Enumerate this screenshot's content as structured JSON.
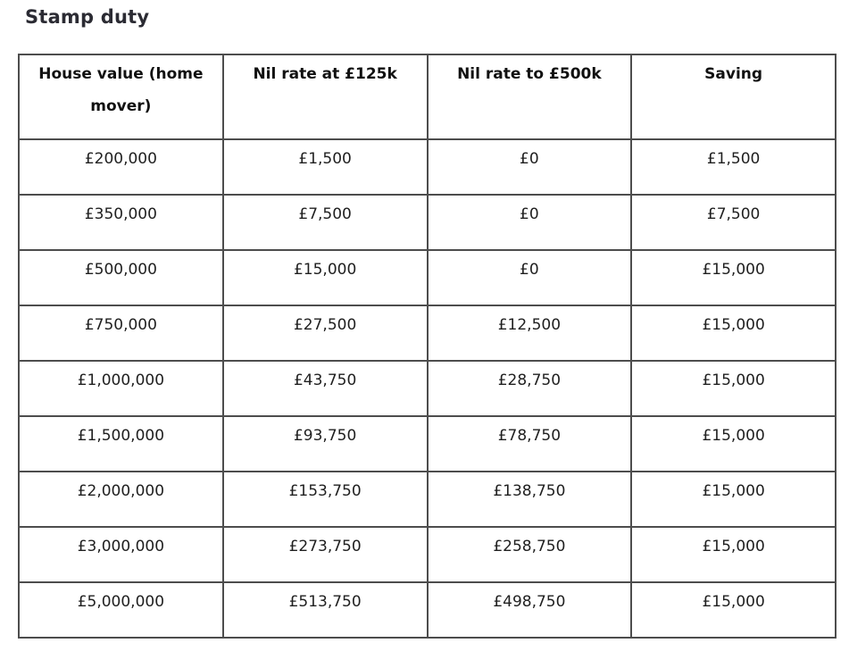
{
  "page": {
    "title": "Stamp duty",
    "background_color": "#ffffff",
    "title_color": "#2b2b33",
    "border_color": "#4d4d4d",
    "text_color": "#1f1f1f"
  },
  "chart_data": {
    "type": "table",
    "title": "Stamp duty",
    "columns": [
      "House value (home mover)",
      "Nil rate at £125k",
      "Nil rate to £500k",
      "Saving"
    ],
    "rows": [
      [
        "£200,000",
        "£1,500",
        "£0",
        "£1,500"
      ],
      [
        "£350,000",
        "£7,500",
        "£0",
        "£7,500"
      ],
      [
        "£500,000",
        "£15,000",
        "£0",
        "£15,000"
      ],
      [
        "£750,000",
        "£27,500",
        "£12,500",
        "£15,000"
      ],
      [
        "£1,000,000",
        "£43,750",
        "£28,750",
        "£15,000"
      ],
      [
        "£1,500,000",
        "£93,750",
        "£78,750",
        "£15,000"
      ],
      [
        "£2,000,000",
        "£153,750",
        "£138,750",
        "£15,000"
      ],
      [
        "£3,000,000",
        "£273,750",
        "£258,750",
        "£15,000"
      ],
      [
        "£5,000,000",
        "£513,750",
        "£498,750",
        "£15,000"
      ]
    ],
    "layout": {
      "grid": "full-borders",
      "header_position": "top",
      "cell_text_align": "center",
      "cell_vertical_align": "top"
    }
  }
}
